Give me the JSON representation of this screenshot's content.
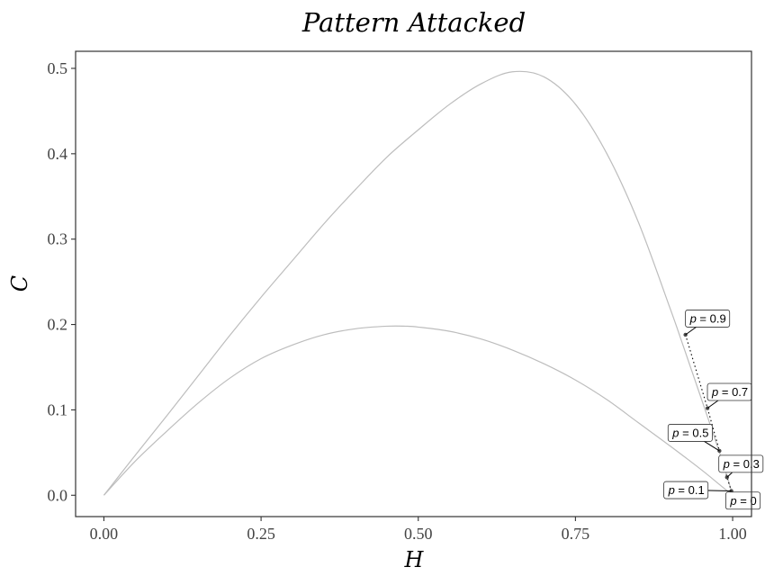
{
  "chart_data": {
    "type": "line",
    "title": "Pattern Attacked",
    "xlabel": "H",
    "ylabel": "C",
    "xlim": [
      -0.045,
      1.03
    ],
    "ylim": [
      -0.025,
      0.52
    ],
    "x_ticks": [
      0,
      0.25,
      0.5,
      0.75,
      1
    ],
    "x_tick_labels": [
      "0.00",
      "0.25",
      "0.50",
      "0.75",
      "1.00"
    ],
    "y_ticks": [
      0,
      0.1,
      0.2,
      0.3,
      0.4,
      0.5
    ],
    "y_tick_labels": [
      "0.0",
      "0.1",
      "0.2",
      "0.3",
      "0.4",
      "0.5"
    ],
    "grid": false,
    "boundary_curves": [
      {
        "x": [
          0,
          0.05,
          0.1,
          0.15,
          0.2,
          0.25,
          0.3,
          0.35,
          0.4,
          0.45,
          0.5,
          0.55,
          0.6,
          0.65,
          0.7,
          0.75,
          0.8,
          0.85,
          0.9,
          0.92,
          0.94,
          0.96,
          0.98,
          0.99,
          1
        ],
        "y": [
          0,
          0.047,
          0.093,
          0.14,
          0.187,
          0.232,
          0.275,
          0.318,
          0.358,
          0.396,
          0.428,
          0.458,
          0.482,
          0.496,
          0.49,
          0.458,
          0.4,
          0.32,
          0.22,
          0.178,
          0.135,
          0.092,
          0.048,
          0.025,
          0
        ]
      },
      {
        "x": [
          0,
          0.05,
          0.1,
          0.15,
          0.2,
          0.25,
          0.3,
          0.35,
          0.4,
          0.45,
          0.48,
          0.5,
          0.55,
          0.6,
          0.65,
          0.7,
          0.75,
          0.8,
          0.85,
          0.9,
          0.95,
          0.98,
          1
        ],
        "y": [
          0,
          0.04,
          0.075,
          0.108,
          0.137,
          0.16,
          0.176,
          0.188,
          0.195,
          0.198,
          0.198,
          0.197,
          0.192,
          0.183,
          0.17,
          0.154,
          0.135,
          0.112,
          0.085,
          0.058,
          0.03,
          0.012,
          0
        ]
      }
    ],
    "series": [
      {
        "points": [
          {
            "p": 0,
            "H": 1.0,
            "C": 0.0
          },
          {
            "p": 0.1,
            "H": 0.998,
            "C": 0.005
          },
          {
            "p": 0.3,
            "H": 0.991,
            "C": 0.021
          },
          {
            "p": 0.5,
            "H": 0.979,
            "C": 0.052
          },
          {
            "p": 0.7,
            "H": 0.96,
            "C": 0.102
          },
          {
            "p": 0.9,
            "H": 0.925,
            "C": 0.188
          }
        ]
      }
    ],
    "annotations": [
      {
        "p_symbol": "p",
        "eq": " = ",
        "value": "0",
        "anchor_p": 0,
        "placement": "below"
      },
      {
        "p_symbol": "p",
        "eq": " = ",
        "value": "0.1",
        "anchor_p": 0.1,
        "placement": "left"
      },
      {
        "p_symbol": "p",
        "eq": " = ",
        "value": "0.3",
        "anchor_p": 0.3,
        "placement": "right"
      },
      {
        "p_symbol": "p",
        "eq": " = ",
        "value": "0.5",
        "anchor_p": 0.5,
        "placement": "left"
      },
      {
        "p_symbol": "p",
        "eq": " = ",
        "value": "0.7",
        "anchor_p": 0.7,
        "placement": "upper-right"
      },
      {
        "p_symbol": "p",
        "eq": " = ",
        "value": "0.9",
        "anchor_p": 0.9,
        "placement": "upper-right"
      }
    ],
    "colors": {
      "boundary": "#bdbdbd",
      "series": "#000000",
      "point": "#4d4d4d",
      "panel_border": "#333333",
      "label_border": "#333333"
    }
  }
}
